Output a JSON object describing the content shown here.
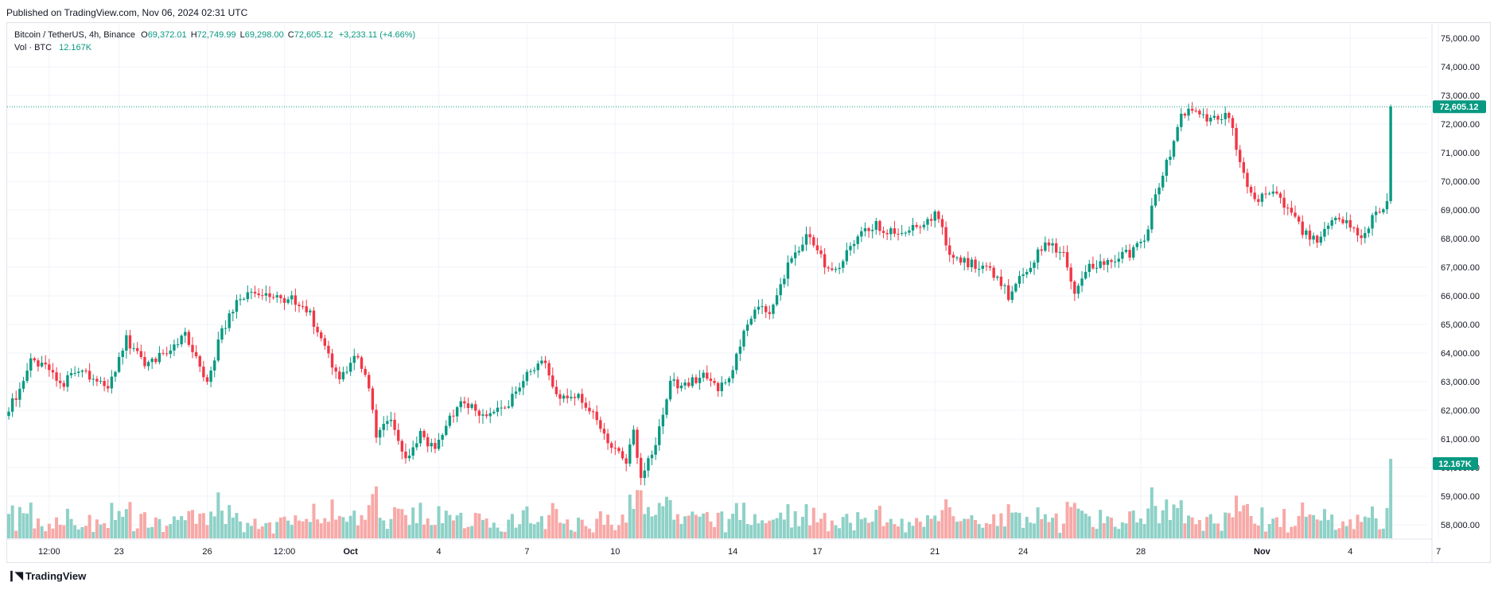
{
  "header": {
    "published": "Published on TradingView.com, Nov 06, 2024 02:31 UTC"
  },
  "legend": {
    "symbol": "Bitcoin / TetherUS, 4h, Binance",
    "o_label": "O",
    "o_value": "69,372.01",
    "h_label": "H",
    "h_value": "72,749.99",
    "l_label": "L",
    "l_value": "69,298.00",
    "c_label": "C",
    "c_value": "72,605.12",
    "change": "+3,233.11 (+4.66%)",
    "vol_label": "Vol · BTC",
    "vol_value": "12.167K"
  },
  "footer": {
    "logo_text": "TradingView"
  },
  "colors": {
    "up": "#089981",
    "down": "#F23645",
    "up_vol": "#8ED1C7",
    "down_vol": "#F7A9A7",
    "grid": "#F0F3FA",
    "axis_text": "#131722"
  },
  "chart_data": {
    "type": "candlestick",
    "interval": "4h",
    "y_axis": {
      "ticks": [
        58000,
        59000,
        60000,
        61000,
        62000,
        63000,
        64000,
        65000,
        66000,
        67000,
        68000,
        69000,
        70000,
        71000,
        72000,
        73000,
        74000,
        75000
      ],
      "tick_labels": [
        "58,000.00",
        "59,000.00",
        "60,000.00",
        "61,000.00",
        "62,000.00",
        "63,000.00",
        "64,000.00",
        "65,000.00",
        "66,000.00",
        "67,000.00",
        "68,000.00",
        "69,000.00",
        "70,000.00",
        "71,000.00",
        "72,000.00",
        "73,000.00",
        "74,000.00",
        "75,000.00"
      ],
      "range": [
        57500,
        75500
      ]
    },
    "x_axis": {
      "ticks": [
        {
          "label": "12:00",
          "bar": 11,
          "bold": false
        },
        {
          "label": "23",
          "bar": 30,
          "bold": false
        },
        {
          "label": "26",
          "bar": 54,
          "bold": false
        },
        {
          "label": "12:00",
          "bar": 75,
          "bold": false
        },
        {
          "label": "Oct",
          "bar": 93,
          "bold": true
        },
        {
          "label": "4",
          "bar": 117,
          "bold": false
        },
        {
          "label": "7",
          "bar": 141,
          "bold": false
        },
        {
          "label": "10",
          "bar": 165,
          "bold": false
        },
        {
          "label": "14",
          "bar": 197,
          "bold": false
        },
        {
          "label": "17",
          "bar": 220,
          "bold": false
        },
        {
          "label": "21",
          "bar": 252,
          "bold": false
        },
        {
          "label": "24",
          "bar": 276,
          "bold": false
        },
        {
          "label": "28",
          "bar": 308,
          "bold": false
        },
        {
          "label": "Nov",
          "bar": 341,
          "bold": true
        },
        {
          "label": "4",
          "bar": 365,
          "bold": false
        },
        {
          "label": "7",
          "bar": 389,
          "bold": false
        }
      ]
    },
    "last_price": 72605.12,
    "last_price_label": "72,605.12",
    "last_volume_label": "12.167K",
    "anchors": [
      [
        0,
        62000
      ],
      [
        3,
        62800
      ],
      [
        6,
        63800
      ],
      [
        10,
        63500
      ],
      [
        14,
        62900
      ],
      [
        20,
        63400
      ],
      [
        27,
        62800
      ],
      [
        32,
        64500
      ],
      [
        37,
        63600
      ],
      [
        44,
        64100
      ],
      [
        48,
        64700
      ],
      [
        54,
        63000
      ],
      [
        58,
        64800
      ],
      [
        63,
        66000
      ],
      [
        72,
        65900
      ],
      [
        80,
        65800
      ],
      [
        85,
        64600
      ],
      [
        90,
        63000
      ],
      [
        95,
        64000
      ],
      [
        98,
        62800
      ],
      [
        100,
        61000
      ],
      [
        104,
        61700
      ],
      [
        108,
        60200
      ],
      [
        112,
        61100
      ],
      [
        116,
        60600
      ],
      [
        122,
        62200
      ],
      [
        130,
        61900
      ],
      [
        136,
        62300
      ],
      [
        141,
        63400
      ],
      [
        146,
        63800
      ],
      [
        149,
        62500
      ],
      [
        156,
        62400
      ],
      [
        163,
        61000
      ],
      [
        168,
        60200
      ],
      [
        170,
        61200
      ],
      [
        172,
        59700
      ],
      [
        176,
        60900
      ],
      [
        180,
        62900
      ],
      [
        185,
        63000
      ],
      [
        190,
        63200
      ],
      [
        193,
        62700
      ],
      [
        196,
        63100
      ],
      [
        200,
        64600
      ],
      [
        204,
        65600
      ],
      [
        207,
        65400
      ],
      [
        210,
        66500
      ],
      [
        214,
        67500
      ],
      [
        217,
        68100
      ],
      [
        222,
        67100
      ],
      [
        226,
        66900
      ],
      [
        231,
        68200
      ],
      [
        236,
        68500
      ],
      [
        242,
        68100
      ],
      [
        250,
        68700
      ],
      [
        253,
        68800
      ],
      [
        256,
        67300
      ],
      [
        262,
        67100
      ],
      [
        268,
        66800
      ],
      [
        272,
        66000
      ],
      [
        277,
        67000
      ],
      [
        283,
        67900
      ],
      [
        287,
        67400
      ],
      [
        290,
        66200
      ],
      [
        294,
        67000
      ],
      [
        300,
        67200
      ],
      [
        305,
        67500
      ],
      [
        309,
        68000
      ],
      [
        312,
        69500
      ],
      [
        316,
        71000
      ],
      [
        319,
        72500
      ],
      [
        322,
        72400
      ],
      [
        327,
        72100
      ],
      [
        332,
        72300
      ],
      [
        335,
        70500
      ],
      [
        339,
        69400
      ],
      [
        345,
        69600
      ],
      [
        349,
        68900
      ],
      [
        352,
        68200
      ],
      [
        356,
        68000
      ],
      [
        360,
        68800
      ],
      [
        364,
        68600
      ],
      [
        368,
        67900
      ],
      [
        372,
        68900
      ],
      [
        375,
        69300
      ],
      [
        376,
        72605
      ]
    ]
  }
}
